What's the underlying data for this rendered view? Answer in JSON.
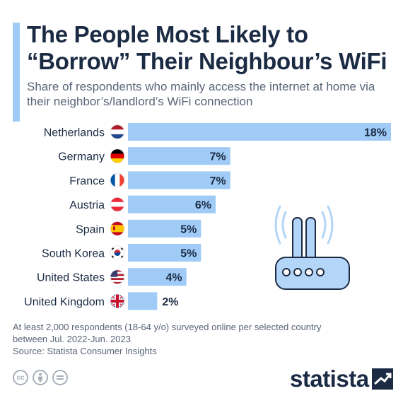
{
  "title": "The People Most Likely to “Borrow” Their Neighbour’s WiFi",
  "subtitle": "Share of respondents who mainly access the internet at home via their neighbor’s/landlord’s WiFi connection",
  "footnote": {
    "line1": "At least 2,000 respondents (18-64 y/o) surveyed online per selected country",
    "line2": "between Jul. 2022-Jun. 2023",
    "source": "Source: Statista Consumer Insights"
  },
  "brand": {
    "name": "statista"
  },
  "colors": {
    "bar": "#9fcbf6",
    "text": "#1b2b44",
    "muted": "#5a6577",
    "router_fill": "#b3d5f7",
    "router_stroke": "#1b2b44"
  },
  "icons": [
    "router-wifi-icon",
    "creative-commons-icon",
    "attribution-icon",
    "no-derivatives-icon",
    "statista-logo-mark"
  ],
  "chart_data": {
    "type": "bar",
    "orientation": "horizontal",
    "categories": [
      "Netherlands",
      "Germany",
      "France",
      "Austria",
      "Spain",
      "South Korea",
      "United States",
      "United Kingdom"
    ],
    "values": [
      18,
      7,
      7,
      6,
      5,
      5,
      4,
      2
    ],
    "value_labels": [
      "18%",
      "7%",
      "7%",
      "6%",
      "5%",
      "5%",
      "4%",
      "2%"
    ],
    "flags": [
      "netherlands-flag",
      "germany-flag",
      "france-flag",
      "austria-flag",
      "spain-flag",
      "south-korea-flag",
      "united-states-flag",
      "united-kingdom-flag"
    ],
    "unit": "%",
    "xlim": [
      0,
      18
    ],
    "grid": false,
    "legend": "none"
  }
}
